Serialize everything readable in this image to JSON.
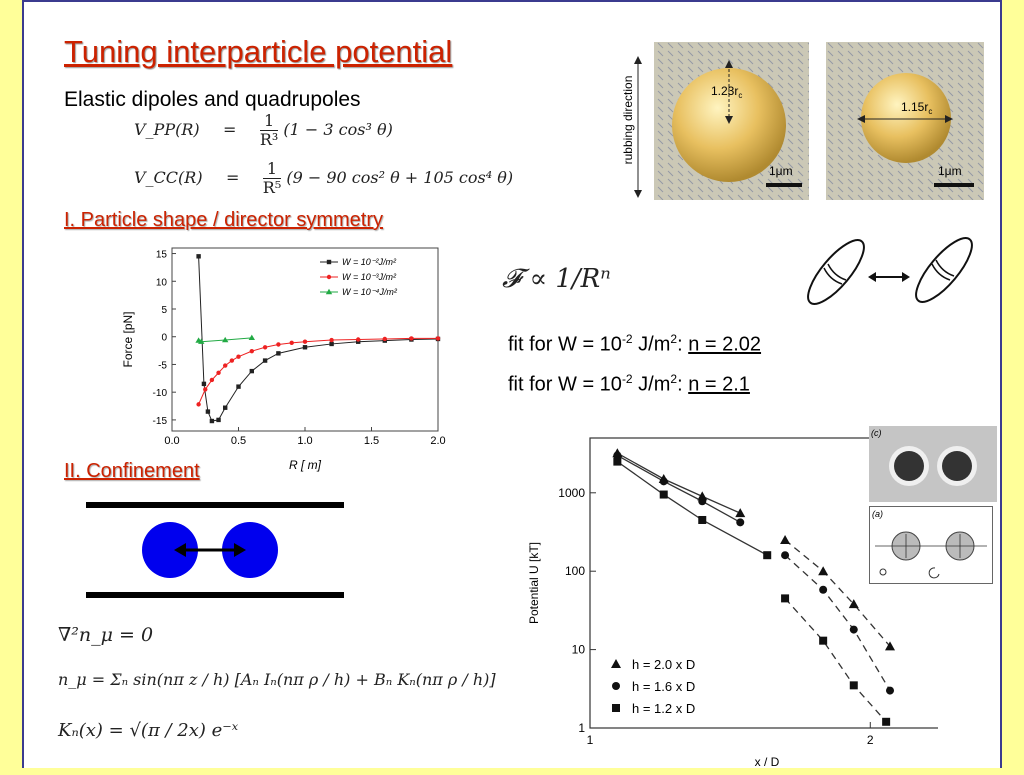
{
  "title": "Tuning interparticle potential",
  "subtitle": "Elastic dipoles and quadrupoles",
  "equations": {
    "vpp_lhs": "V_PP(R)",
    "vpp_rhs": "(1 − 3 cos³ θ)",
    "vpp_num": "1",
    "vpp_den": "R³",
    "vcc_lhs": "V_CC(R)",
    "vcc_rhs": "(9 − 90 cos² θ + 105 cos⁴ θ)",
    "vcc_num": "1",
    "vcc_den": "R⁵",
    "eq_sign": "=",
    "force_law": "𝓕 ∝ 1/Rⁿ",
    "laplace": "∇²n_μ = 0",
    "series": "n_μ = Σₙ sin(nπ z / h) [Aₙ Iₙ(nπ ρ / h) + Bₙ Kₙ(nπ ρ / h)]",
    "bessel": "Kₙ(x) = √(π / 2x) e⁻ˣ"
  },
  "sections": {
    "shape": "I. Particle shape / director symmetry",
    "confinement": "II. Confinement"
  },
  "fits": [
    {
      "pre": "fit for W = 10",
      "exp": "-2",
      "mid": " J/m",
      "exp2": "2",
      "post": ": ",
      "result": "n = 2.02"
    },
    {
      "pre": "fit for W = 10",
      "exp": "-2",
      "mid": " J/m",
      "exp2": "2",
      "post": ": ",
      "result": "n = 2.1"
    }
  ],
  "micrographs": {
    "rubbing_label": "rubbing direction",
    "left_label": "1.23r",
    "left_sub": "c",
    "right_label": "1.15r",
    "right_sub": "c",
    "scale": "1μm"
  },
  "inset_labels": {
    "c": "(c)",
    "a": "(a)"
  },
  "colors": {
    "title": "#CC2200",
    "frame": "#3B3B8F",
    "background": "#FFFF99",
    "particle": "#0000EE"
  },
  "chart_data": [
    {
      "type": "line",
      "xlabel": "R [  m]",
      "ylabel": "Force [pN]",
      "xlim": [
        0.0,
        2.0
      ],
      "ylim": [
        -17,
        16
      ],
      "xticks": [
        "0.0",
        "0.5",
        "1.0",
        "1.5",
        "2.0"
      ],
      "yticks": [
        "15",
        "10",
        "5",
        "0",
        "-5",
        "-10",
        "-15"
      ],
      "legend_position": "top-right",
      "series": [
        {
          "name": "W = 10⁻²J/m²",
          "color": "#222222",
          "marker": "square",
          "x": [
            0.2,
            0.24,
            0.27,
            0.3,
            0.35,
            0.4,
            0.5,
            0.6,
            0.7,
            0.8,
            1.0,
            1.2,
            1.4,
            1.6,
            1.8,
            2.0
          ],
          "y": [
            14.5,
            -8.5,
            -13.5,
            -15.2,
            -15.0,
            -12.8,
            -9.0,
            -6.2,
            -4.3,
            -3.0,
            -1.9,
            -1.3,
            -0.9,
            -0.7,
            -0.5,
            -0.4
          ]
        },
        {
          "name": "W = 10⁻³J/m²",
          "color": "#EE2222",
          "marker": "circle",
          "x": [
            0.2,
            0.25,
            0.3,
            0.35,
            0.4,
            0.45,
            0.5,
            0.6,
            0.7,
            0.8,
            0.9,
            1.0,
            1.2,
            1.4,
            1.6,
            1.8,
            2.0
          ],
          "y": [
            -12.2,
            -9.5,
            -7.8,
            -6.5,
            -5.2,
            -4.3,
            -3.6,
            -2.6,
            -1.9,
            -1.4,
            -1.1,
            -0.9,
            -0.6,
            -0.5,
            -0.4,
            -0.3,
            -0.3
          ]
        },
        {
          "name": "W = 10⁻⁴J/m²",
          "color": "#22AA44",
          "marker": "triangle",
          "x": [
            0.2,
            0.22,
            0.4,
            0.6
          ],
          "y": [
            -0.7,
            -0.9,
            -0.6,
            -0.2
          ]
        }
      ]
    },
    {
      "type": "scatter",
      "xlabel": "x / D",
      "ylabel": "Potential U [kT]",
      "xscale": "log",
      "yscale": "log",
      "xlim": [
        1.0,
        2.4
      ],
      "ylim": [
        1,
        5000
      ],
      "xticks": [
        "1",
        "2"
      ],
      "yticks": [
        "1000",
        "100",
        "10",
        "1"
      ],
      "legend_position": "bottom-left",
      "series": [
        {
          "name": "h = 2.0 x D",
          "marker": "triangle",
          "x": [
            1.07,
            1.2,
            1.32,
            1.45,
            1.62,
            1.78,
            1.92,
            2.1
          ],
          "y": [
            3200,
            1500,
            900,
            550,
            250,
            100,
            38,
            11
          ]
        },
        {
          "name": "h = 1.6 x D",
          "marker": "circle",
          "x": [
            1.07,
            1.2,
            1.32,
            1.45,
            1.62,
            1.78,
            1.92,
            2.1
          ],
          "y": [
            3000,
            1400,
            780,
            420,
            160,
            58,
            18,
            3
          ]
        },
        {
          "name": "h = 1.2 x D",
          "marker": "square",
          "x": [
            1.07,
            1.2,
            1.32,
            1.55,
            1.62,
            1.78,
            1.92,
            2.08
          ],
          "y": [
            2500,
            950,
            450,
            160,
            45,
            13,
            3.5,
            1.2
          ]
        }
      ]
    }
  ]
}
